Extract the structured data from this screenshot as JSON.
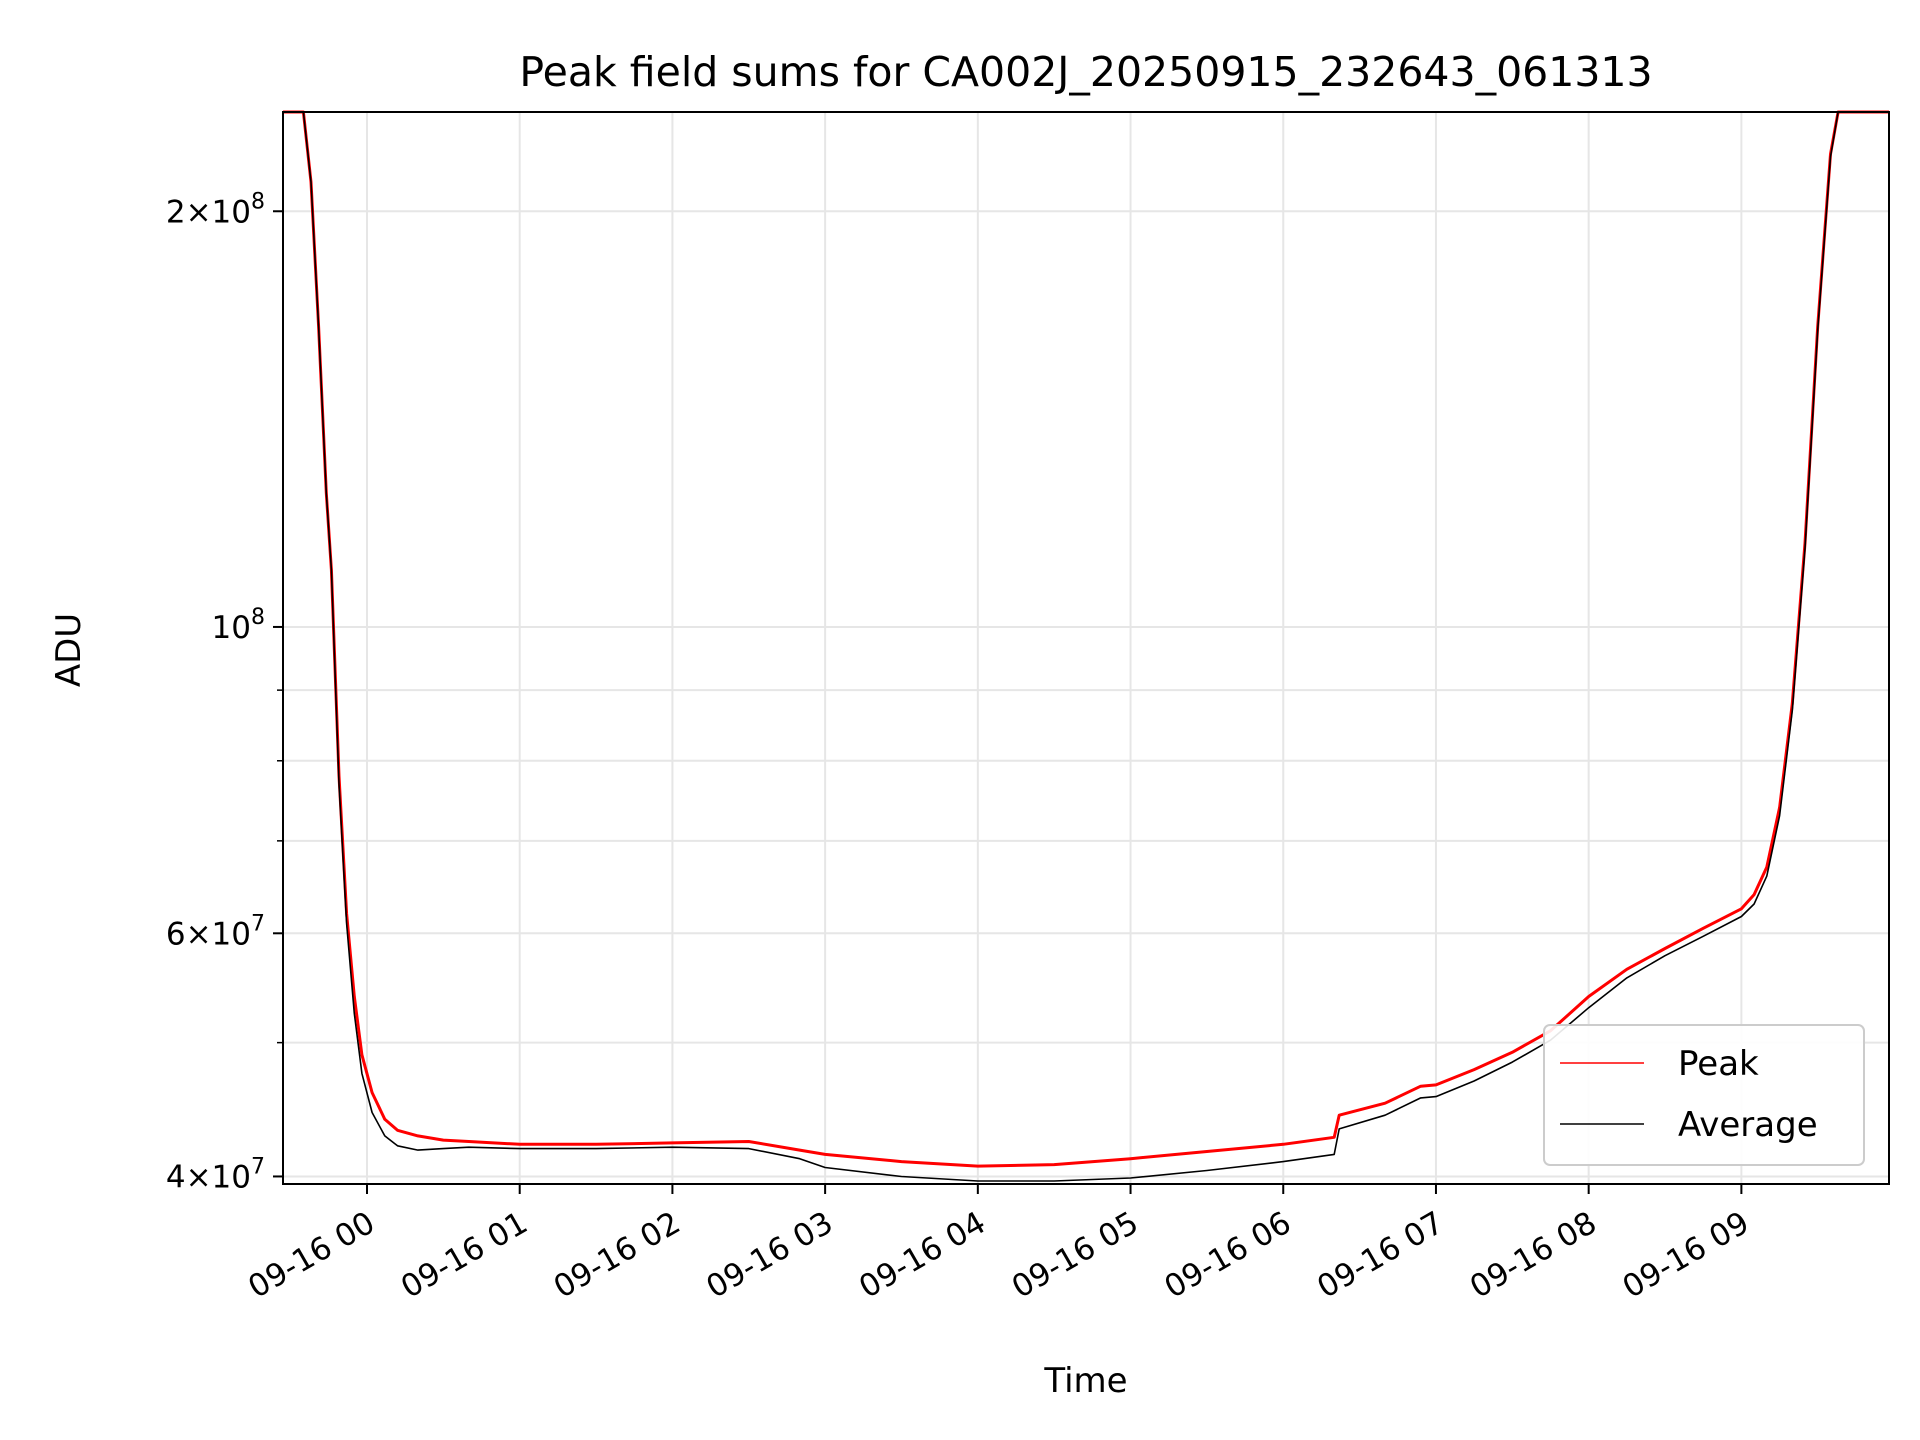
{
  "chart_data": {
    "type": "line",
    "title": "Peak field sums for CA002J_20250915_232643_061313",
    "xlabel": "Time",
    "ylabel": "ADU",
    "yscale": "log",
    "ylim": [
      39500000,
      236000000
    ],
    "xlim": [
      "2025-09-15 23:27",
      "2025-09-16 09:58"
    ],
    "grid": true,
    "legend_position": "lower-right",
    "x_ticks": [
      {
        "t": "2025-09-16 00:00",
        "label": "09-16 00"
      },
      {
        "t": "2025-09-16 01:00",
        "label": "09-16 01"
      },
      {
        "t": "2025-09-16 02:00",
        "label": "09-16 02"
      },
      {
        "t": "2025-09-16 03:00",
        "label": "09-16 03"
      },
      {
        "t": "2025-09-16 04:00",
        "label": "09-16 04"
      },
      {
        "t": "2025-09-16 05:00",
        "label": "09-16 05"
      },
      {
        "t": "2025-09-16 06:00",
        "label": "09-16 06"
      },
      {
        "t": "2025-09-16 07:00",
        "label": "09-16 07"
      },
      {
        "t": "2025-09-16 08:00",
        "label": "09-16 08"
      },
      {
        "t": "2025-09-16 09:00",
        "label": "09-16 09"
      }
    ],
    "y_major_ticks": [
      {
        "v": 40000000,
        "mant": "4",
        "exp": "7"
      },
      {
        "v": 60000000,
        "mant": "6",
        "exp": "7"
      },
      {
        "v": 100000000,
        "mant": "",
        "exp": "8"
      },
      {
        "v": 200000000,
        "mant": "2",
        "exp": "8"
      }
    ],
    "y_minor_ticks": [
      50000000,
      70000000,
      80000000,
      90000000
    ],
    "series": [
      {
        "name": "Peak",
        "color": "#ff0000",
        "points": [
          [
            "2025-09-15 23:27",
            236000000
          ],
          [
            "2025-09-15 23:35",
            236000000
          ],
          [
            "2025-09-15 23:38",
            210000000
          ],
          [
            "2025-09-15 23:41",
            165000000
          ],
          [
            "2025-09-15 23:44",
            125000000
          ],
          [
            "2025-09-15 23:46",
            110000000
          ],
          [
            "2025-09-15 23:49",
            78000000
          ],
          [
            "2025-09-15 23:52",
            62000000
          ],
          [
            "2025-09-15 23:55",
            54000000
          ],
          [
            "2025-09-15 23:58",
            49000000
          ],
          [
            "2025-09-16 00:02",
            46000000
          ],
          [
            "2025-09-16 00:07",
            44000000
          ],
          [
            "2025-09-16 00:12",
            43200000
          ],
          [
            "2025-09-16 00:20",
            42800000
          ],
          [
            "2025-09-16 00:30",
            42500000
          ],
          [
            "2025-09-16 00:40",
            42400000
          ],
          [
            "2025-09-16 01:00",
            42200000
          ],
          [
            "2025-09-16 01:30",
            42200000
          ],
          [
            "2025-09-16 02:00",
            42300000
          ],
          [
            "2025-09-16 02:30",
            42400000
          ],
          [
            "2025-09-16 02:50",
            41800000
          ],
          [
            "2025-09-16 03:00",
            41500000
          ],
          [
            "2025-09-16 03:30",
            41000000
          ],
          [
            "2025-09-16 04:00",
            40700000
          ],
          [
            "2025-09-16 04:30",
            40800000
          ],
          [
            "2025-09-16 05:00",
            41200000
          ],
          [
            "2025-09-16 05:30",
            41700000
          ],
          [
            "2025-09-16 06:00",
            42200000
          ],
          [
            "2025-09-16 06:20",
            42700000
          ],
          [
            "2025-09-16 06:22",
            44300000
          ],
          [
            "2025-09-16 06:40",
            45200000
          ],
          [
            "2025-09-16 06:54",
            46500000
          ],
          [
            "2025-09-16 07:00",
            46600000
          ],
          [
            "2025-09-16 07:15",
            47800000
          ],
          [
            "2025-09-16 07:30",
            49200000
          ],
          [
            "2025-09-16 07:45",
            51000000
          ],
          [
            "2025-09-16 08:00",
            54000000
          ],
          [
            "2025-09-16 08:15",
            56500000
          ],
          [
            "2025-09-16 08:30",
            58500000
          ],
          [
            "2025-09-16 08:45",
            60500000
          ],
          [
            "2025-09-16 09:00",
            62500000
          ],
          [
            "2025-09-16 09:05",
            64000000
          ],
          [
            "2025-09-16 09:10",
            67000000
          ],
          [
            "2025-09-16 09:15",
            74000000
          ],
          [
            "2025-09-16 09:20",
            88000000
          ],
          [
            "2025-09-16 09:25",
            115000000
          ],
          [
            "2025-09-16 09:30",
            165000000
          ],
          [
            "2025-09-16 09:35",
            220000000
          ],
          [
            "2025-09-16 09:38",
            236000000
          ],
          [
            "2025-09-16 09:58",
            236000000
          ]
        ]
      },
      {
        "name": "Average",
        "color": "#000000",
        "points": [
          [
            "2025-09-15 23:27",
            236000000
          ],
          [
            "2025-09-15 23:35",
            236000000
          ],
          [
            "2025-09-15 23:38",
            210000000
          ],
          [
            "2025-09-15 23:41",
            165000000
          ],
          [
            "2025-09-15 23:44",
            125000000
          ],
          [
            "2025-09-15 23:46",
            110000000
          ],
          [
            "2025-09-15 23:49",
            77000000
          ],
          [
            "2025-09-15 23:52",
            61000000
          ],
          [
            "2025-09-15 23:55",
            52500000
          ],
          [
            "2025-09-15 23:58",
            47500000
          ],
          [
            "2025-09-16 00:02",
            44500000
          ],
          [
            "2025-09-16 00:07",
            42800000
          ],
          [
            "2025-09-16 00:12",
            42100000
          ],
          [
            "2025-09-16 00:20",
            41800000
          ],
          [
            "2025-09-16 00:30",
            41900000
          ],
          [
            "2025-09-16 00:40",
            42000000
          ],
          [
            "2025-09-16 01:00",
            41900000
          ],
          [
            "2025-09-16 01:30",
            41900000
          ],
          [
            "2025-09-16 02:00",
            42000000
          ],
          [
            "2025-09-16 02:30",
            41900000
          ],
          [
            "2025-09-16 02:50",
            41200000
          ],
          [
            "2025-09-16 03:00",
            40600000
          ],
          [
            "2025-09-16 03:30",
            40000000
          ],
          [
            "2025-09-16 04:00",
            39700000
          ],
          [
            "2025-09-16 04:30",
            39700000
          ],
          [
            "2025-09-16 05:00",
            39900000
          ],
          [
            "2025-09-16 05:30",
            40400000
          ],
          [
            "2025-09-16 06:00",
            41000000
          ],
          [
            "2025-09-16 06:20",
            41500000
          ],
          [
            "2025-09-16 06:22",
            43300000
          ],
          [
            "2025-09-16 06:40",
            44300000
          ],
          [
            "2025-09-16 06:54",
            45600000
          ],
          [
            "2025-09-16 07:00",
            45700000
          ],
          [
            "2025-09-16 07:15",
            46900000
          ],
          [
            "2025-09-16 07:30",
            48400000
          ],
          [
            "2025-09-16 07:45",
            50200000
          ],
          [
            "2025-09-16 08:00",
            53000000
          ],
          [
            "2025-09-16 08:15",
            55700000
          ],
          [
            "2025-09-16 08:30",
            57800000
          ],
          [
            "2025-09-16 08:45",
            59700000
          ],
          [
            "2025-09-16 09:00",
            61700000
          ],
          [
            "2025-09-16 09:05",
            63000000
          ],
          [
            "2025-09-16 09:10",
            66000000
          ],
          [
            "2025-09-16 09:15",
            73000000
          ],
          [
            "2025-09-16 09:20",
            87000000
          ],
          [
            "2025-09-16 09:25",
            114000000
          ],
          [
            "2025-09-16 09:30",
            164000000
          ],
          [
            "2025-09-16 09:35",
            219000000
          ],
          [
            "2025-09-16 09:38",
            236000000
          ],
          [
            "2025-09-16 09:58",
            236000000
          ]
        ]
      }
    ]
  }
}
